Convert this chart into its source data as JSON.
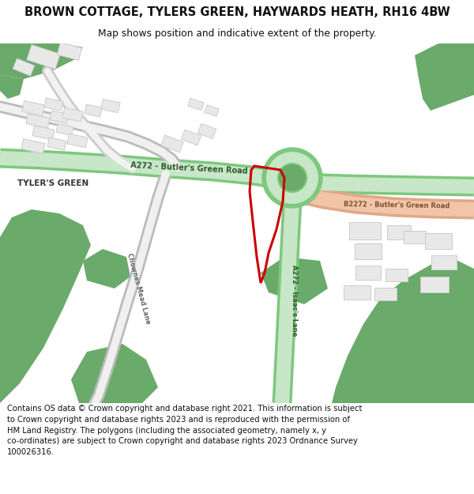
{
  "title": "BROWN COTTAGE, TYLERS GREEN, HAYWARDS HEATH, RH16 4BW",
  "subtitle": "Map shows position and indicative extent of the property.",
  "footer": "Contains OS data © Crown copyright and database right 2021. This information is subject\nto Crown copyright and database rights 2023 and is reproduced with the permission of\nHM Land Registry. The polygons (including the associated geometry, namely x, y\nco-ordinates) are subject to Crown copyright and database rights 2023 Ordnance Survey\n100026316.",
  "bg_color": "#ffffff",
  "map_bg": "#ffffff",
  "green_dark": "#6aaa6a",
  "green_light_road": "#c8e6c8",
  "green_road_edge": "#7dc87d",
  "salmon_road": "#f2c4a8",
  "salmon_edge": "#e0a888",
  "building_fill": "#e8e8e8",
  "building_edge": "#cccccc",
  "road_text_green": "#2d5a2d",
  "road_text_brown": "#7a5030",
  "road_text_gray": "#555555",
  "plot_red": "#cc0000",
  "label_dark": "#333333",
  "title_fs": 10.5,
  "subtitle_fs": 8.8,
  "footer_fs": 7.2
}
